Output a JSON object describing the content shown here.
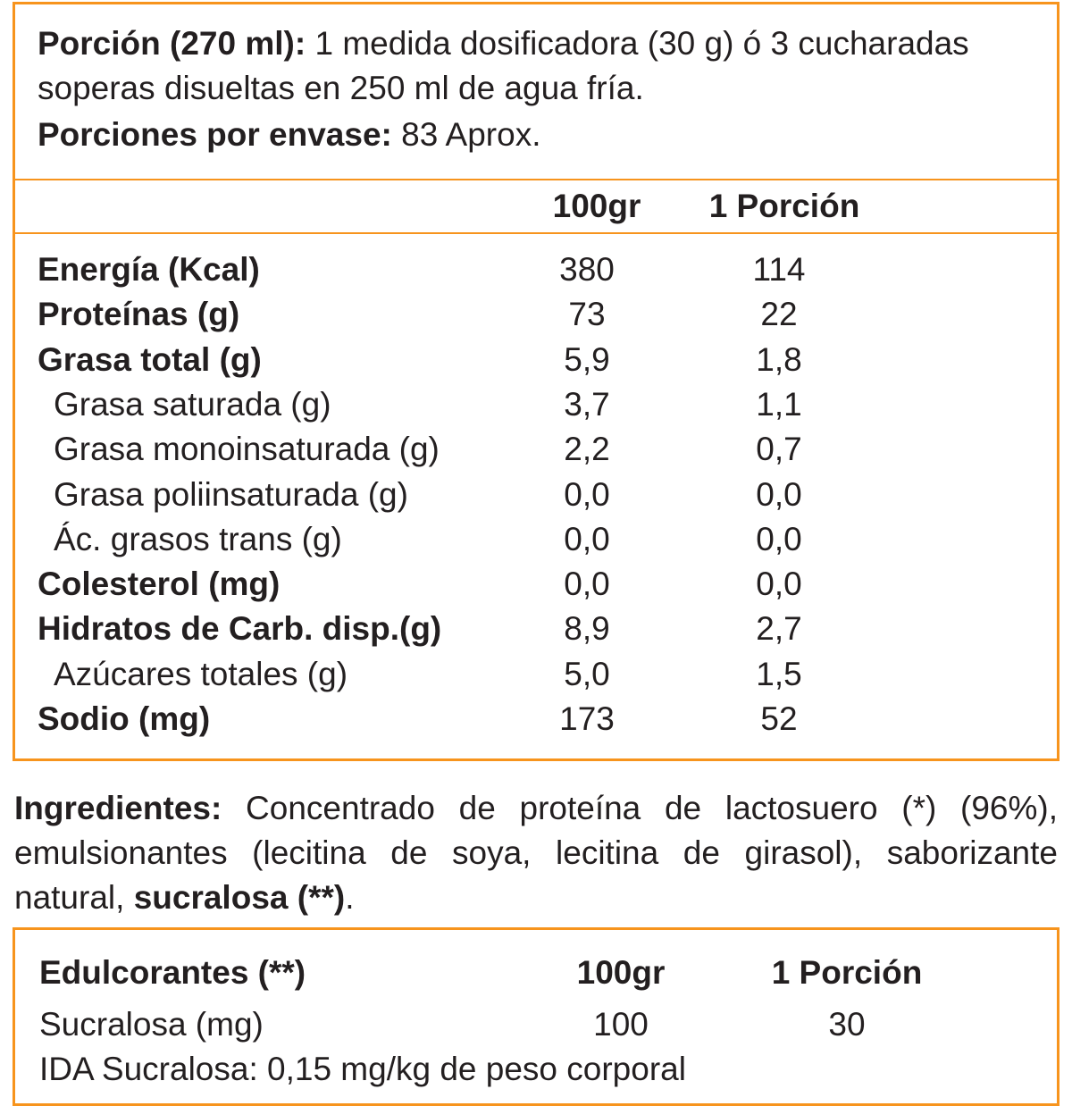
{
  "serving": {
    "label": "Porción (270 ml):",
    "text": "1 medida dosificadora (30 g) ó 3 cucharadas soperas disueltas en 250 ml de agua fría."
  },
  "servings_per_container": {
    "label": "Porciones por envase:",
    "text": "83 Aprox."
  },
  "table": {
    "columns": [
      "100gr",
      "1 Porción"
    ],
    "rows": [
      {
        "name": "Energía (Kcal)",
        "bold": true,
        "values": [
          "380",
          "114"
        ]
      },
      {
        "name": "Proteínas (g)",
        "bold": true,
        "values": [
          "73",
          "22"
        ]
      },
      {
        "name": "Grasa total (g)",
        "bold": true,
        "values": [
          "5,9",
          "1,8"
        ]
      },
      {
        "name": "Grasa saturada (g)",
        "bold": false,
        "values": [
          "3,7",
          "1,1"
        ]
      },
      {
        "name": "Grasa monoinsaturada (g)",
        "bold": false,
        "values": [
          "2,2",
          "0,7"
        ]
      },
      {
        "name": "Grasa poliinsaturada (g)",
        "bold": false,
        "values": [
          "0,0",
          "0,0"
        ]
      },
      {
        "name": "Ác. grasos trans (g)",
        "bold": false,
        "values": [
          "0,0",
          "0,0"
        ]
      },
      {
        "name": "Colesterol (mg)",
        "bold": true,
        "values": [
          "0,0",
          "0,0"
        ]
      },
      {
        "name": "Hidratos de Carb. disp.(g)",
        "bold": true,
        "values": [
          "8,9",
          "2,7"
        ]
      },
      {
        "name": "Azúcares totales (g)",
        "bold": false,
        "values": [
          "5,0",
          "1,5"
        ]
      },
      {
        "name": "Sodio (mg)",
        "bold": true,
        "values": [
          "173",
          "52"
        ]
      }
    ]
  },
  "ingredients": {
    "label": "Ingredientes:",
    "text": "Concentrado de proteína de lactosuero (*) (96%), emulsionantes (lecitina de soya, lecitina de girasol), saborizante natural,",
    "bold_tail": "sucralosa (**)",
    "end": "."
  },
  "sweeteners": {
    "title": "Edulcorantes (**)",
    "columns": [
      "100gr",
      "1 Porción"
    ],
    "rows": [
      {
        "name": "Sucralosa (mg)",
        "values": [
          "100",
          "30"
        ]
      }
    ],
    "note": "IDA Sucralosa: 0,15 mg/kg de peso corporal"
  }
}
